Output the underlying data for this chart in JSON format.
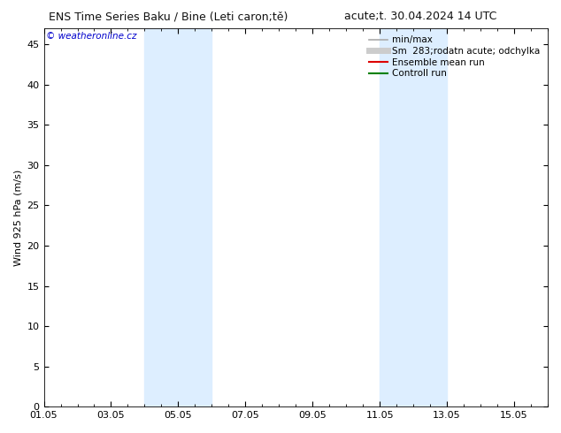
{
  "title_left": "ENS Time Series Baku / Bine (Leti caron;tě)",
  "title_right": "acute;t. 30.04.2024 14 UTC",
  "ylabel": "Wind 925 hPa (m/s)",
  "watermark": "© weatheronline.cz",
  "watermark_color": "#0000cc",
  "xmin": 0,
  "xmax": 15,
  "ymin": 0,
  "ymax": 47,
  "yticks": [
    0,
    5,
    10,
    15,
    20,
    25,
    30,
    35,
    40,
    45
  ],
  "xtick_labels": [
    "01.05",
    "03.05",
    "05.05",
    "07.05",
    "09.05",
    "11.05",
    "13.05",
    "15.05"
  ],
  "xtick_positions": [
    0,
    2,
    4,
    6,
    8,
    10,
    12,
    14
  ],
  "shaded_regions": [
    {
      "xstart": 3.0,
      "xend": 5.0
    },
    {
      "xstart": 10.0,
      "xend": 12.0
    }
  ],
  "shaded_color": "#ddeeff",
  "bg_color": "#ffffff",
  "plot_bg_color": "#ffffff",
  "legend_entries": [
    {
      "label": "min/max",
      "color": "#aaaaaa",
      "lw": 1.2,
      "style": "-"
    },
    {
      "label": "Sm  283;rodatn acute; odchylka",
      "color": "#cccccc",
      "lw": 5,
      "style": "-"
    },
    {
      "label": "Ensemble mean run",
      "color": "#dd0000",
      "lw": 1.5,
      "style": "-"
    },
    {
      "label": "Controll run",
      "color": "#008000",
      "lw": 1.5,
      "style": "-"
    }
  ],
  "title_fontsize": 9,
  "axis_fontsize": 8,
  "tick_fontsize": 8,
  "legend_fontsize": 7.5
}
